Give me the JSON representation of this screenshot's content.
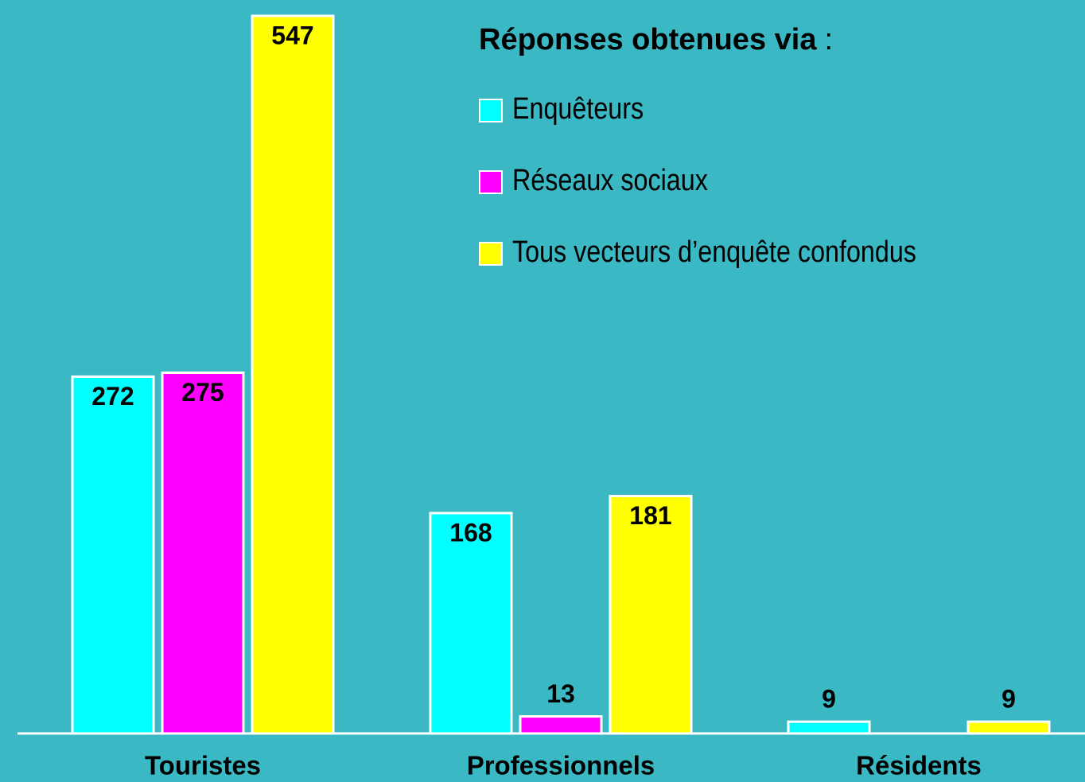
{
  "chart_data": {
    "type": "bar",
    "legend_title": "Réponses obtenues via",
    "legend_title_punctuation": ":",
    "categories": [
      "Touristes",
      "Professionnels",
      "Résidents"
    ],
    "series": [
      {
        "name": "Enquêteurs",
        "color": "#00ffff",
        "values": [
          272,
          168,
          9
        ]
      },
      {
        "name": "Réseaux sociaux",
        "color": "#ff00ff",
        "values": [
          275,
          13,
          null
        ]
      },
      {
        "name": "Tous vecteurs d’enquête confondus",
        "color": "#ffff00",
        "values": [
          547,
          181,
          9
        ]
      }
    ],
    "ylim": [
      0,
      550
    ],
    "background": "#3ab8c4",
    "legend": "top-right"
  }
}
